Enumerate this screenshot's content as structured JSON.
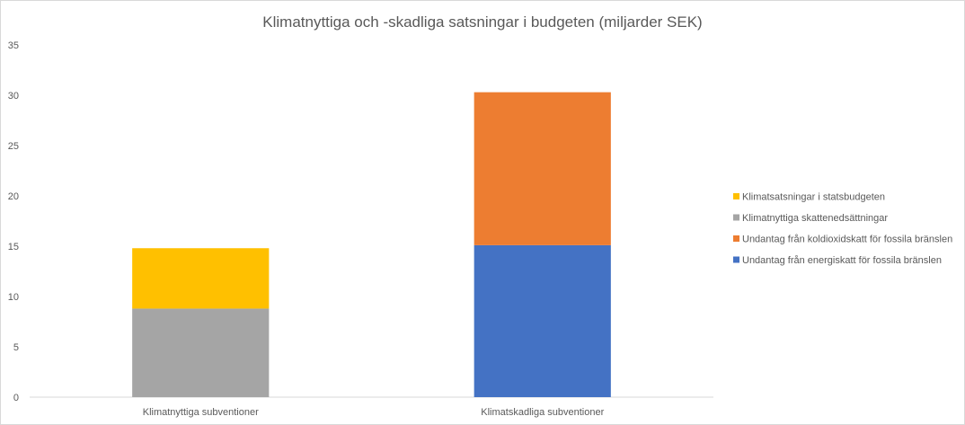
{
  "chart_data": {
    "type": "bar",
    "stacked": true,
    "title": "Klimatnyttiga och -skadliga satsningar i budgeten (miljarder SEK)",
    "xlabel": "",
    "ylabel": "",
    "ylim": [
      0,
      35
    ],
    "yticks": [
      0,
      5,
      10,
      15,
      20,
      25,
      30,
      35
    ],
    "grid": false,
    "legend_position": "right",
    "categories": [
      "Klimatnyttiga subventioner",
      "Klimatskadliga subventioner"
    ],
    "series": [
      {
        "name": "Klimatnyttiga skattenedsättningar",
        "color": "#A5A5A5",
        "values": [
          8.8,
          0
        ]
      },
      {
        "name": "Klimatsatsningar i statsbudgeten",
        "color": "#FFC000",
        "values": [
          6.0,
          0
        ]
      },
      {
        "name": "Undantag från energiskatt för fossila bränslen",
        "color": "#4472C4",
        "values": [
          0,
          15.1
        ]
      },
      {
        "name": "Undantag från koldioxidskatt för fossila bränslen",
        "color": "#ED7D31",
        "values": [
          0,
          15.2
        ]
      }
    ],
    "legend_order": [
      "Klimatsatsningar i statsbudgeten",
      "Klimatnyttiga skattenedsättningar",
      "Undantag från koldioxidskatt för fossila bränslen",
      "Undantag från energiskatt för fossila bränslen"
    ]
  }
}
